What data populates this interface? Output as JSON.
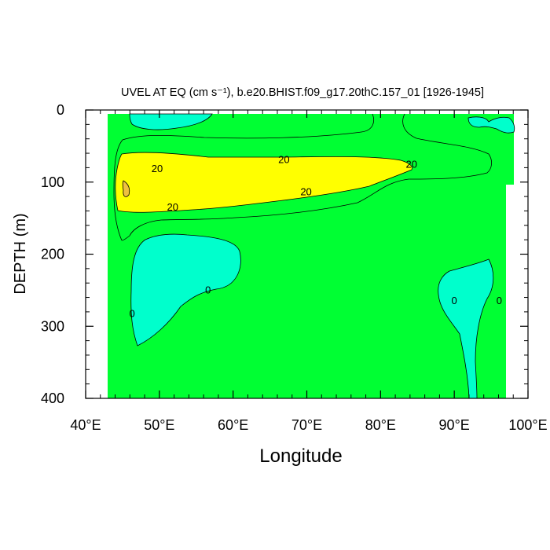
{
  "chart_data": {
    "type": "contour",
    "title": "UVEL AT EQ (cm s⁻¹), b.e20.BHIST.f09_g17.20thC.157_01 [1926-1945]",
    "xlabel": "Longitude",
    "ylabel": "DEPTH (m)",
    "xlim": [
      40,
      100
    ],
    "ylim": [
      0,
      400
    ],
    "y_reversed": true,
    "x_ticks": [
      {
        "value": 40,
        "label": "40°E"
      },
      {
        "value": 50,
        "label": "50°E"
      },
      {
        "value": 60,
        "label": "60°E"
      },
      {
        "value": 70,
        "label": "70°E"
      },
      {
        "value": 80,
        "label": "80°E"
      },
      {
        "value": 90,
        "label": "90°E"
      },
      {
        "value": 100,
        "label": "100°E"
      }
    ],
    "y_ticks": [
      {
        "value": 0,
        "label": "0"
      },
      {
        "value": 100,
        "label": "100"
      },
      {
        "value": 200,
        "label": "200"
      },
      {
        "value": 300,
        "label": "300"
      },
      {
        "value": 400,
        "label": "400"
      }
    ],
    "colors": {
      "below_zero": "#00ffcc",
      "zero_to_20": "#00ff33",
      "20_to_40": "#ffff00",
      "above_40": "#eec040",
      "contour_line": "#000000"
    },
    "contour_labels": [
      {
        "lon": 49.7,
        "depth": 82,
        "text": "20"
      },
      {
        "lon": 51.8,
        "depth": 135,
        "text": "20"
      },
      {
        "lon": 66.9,
        "depth": 69,
        "text": "20"
      },
      {
        "lon": 69.9,
        "depth": 114,
        "text": "20"
      },
      {
        "lon": 84.2,
        "depth": 76,
        "text": "20"
      },
      {
        "lon": 46.3,
        "depth": 283,
        "text": "0"
      },
      {
        "lon": 56.6,
        "depth": 250,
        "text": "0"
      },
      {
        "lon": 90.0,
        "depth": 265,
        "text": "0"
      },
      {
        "lon": 96.1,
        "depth": 265,
        "text": "0"
      }
    ]
  }
}
